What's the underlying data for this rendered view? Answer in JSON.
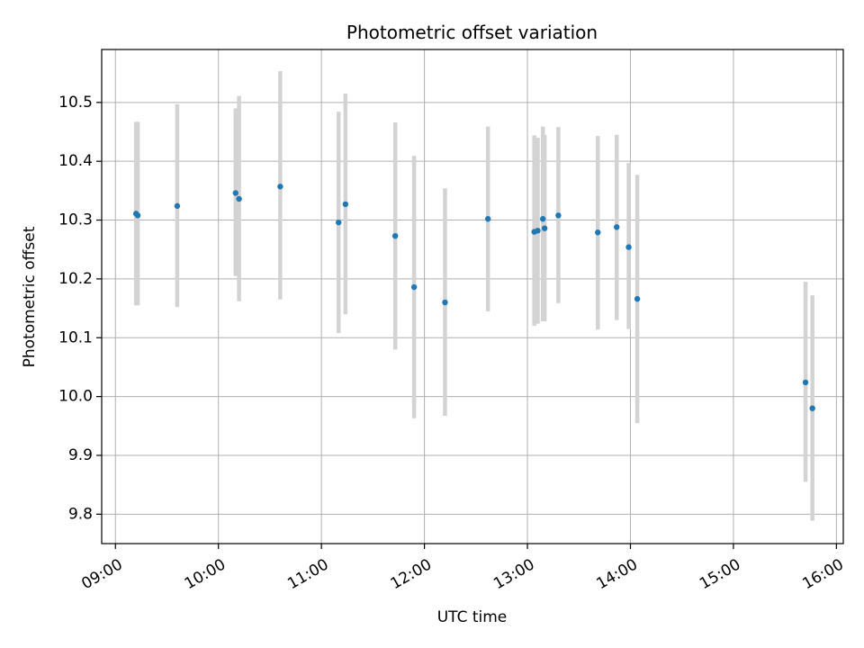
{
  "chart_data": {
    "type": "scatter",
    "title": "Photometric offset variation",
    "xlabel": "UTC time",
    "ylabel": "Photometric offset",
    "x_axis_type": "time",
    "xlim": [
      "08:52",
      "16:04"
    ],
    "ylim": [
      9.75,
      10.59
    ],
    "x_ticks": [
      "09:00",
      "10:00",
      "11:00",
      "12:00",
      "13:00",
      "14:00",
      "15:00",
      "16:00"
    ],
    "y_ticks": [
      9.8,
      9.9,
      10.0,
      10.1,
      10.2,
      10.3,
      10.4,
      10.5
    ],
    "grid": true,
    "marker_color": "#1f77b4",
    "errorbar_color": "#d3d3d3",
    "points": [
      {
        "time": "09:12",
        "y": 10.311,
        "err_low": 10.155,
        "err_high": 10.467
      },
      {
        "time": "09:13",
        "y": 10.308,
        "err_low": 10.155,
        "err_high": 10.467
      },
      {
        "time": "09:36",
        "y": 10.324,
        "err_low": 10.152,
        "err_high": 10.497
      },
      {
        "time": "10:10",
        "y": 10.346,
        "err_low": 10.205,
        "err_high": 10.49
      },
      {
        "time": "10:12",
        "y": 10.336,
        "err_low": 10.162,
        "err_high": 10.511
      },
      {
        "time": "10:36",
        "y": 10.357,
        "err_low": 10.165,
        "err_high": 10.553
      },
      {
        "time": "11:10",
        "y": 10.296,
        "err_low": 10.108,
        "err_high": 10.484
      },
      {
        "time": "11:14",
        "y": 10.327,
        "err_low": 10.14,
        "err_high": 10.515
      },
      {
        "time": "11:43",
        "y": 10.273,
        "err_low": 10.08,
        "err_high": 10.466
      },
      {
        "time": "11:54",
        "y": 10.186,
        "err_low": 9.963,
        "err_high": 10.409
      },
      {
        "time": "12:12",
        "y": 10.16,
        "err_low": 9.967,
        "err_high": 10.354
      },
      {
        "time": "12:37",
        "y": 10.302,
        "err_low": 10.145,
        "err_high": 10.459
      },
      {
        "time": "13:04",
        "y": 10.28,
        "err_low": 10.12,
        "err_high": 10.444
      },
      {
        "time": "13:06",
        "y": 10.282,
        "err_low": 10.124,
        "err_high": 10.44
      },
      {
        "time": "13:09",
        "y": 10.302,
        "err_low": 10.128,
        "err_high": 10.459
      },
      {
        "time": "13:10",
        "y": 10.286,
        "err_low": 10.128,
        "err_high": 10.445
      },
      {
        "time": "13:18",
        "y": 10.308,
        "err_low": 10.159,
        "err_high": 10.458
      },
      {
        "time": "13:41",
        "y": 10.279,
        "err_low": 10.114,
        "err_high": 10.443
      },
      {
        "time": "13:52",
        "y": 10.288,
        "err_low": 10.13,
        "err_high": 10.445
      },
      {
        "time": "13:59",
        "y": 10.254,
        "err_low": 10.115,
        "err_high": 10.397
      },
      {
        "time": "14:04",
        "y": 10.166,
        "err_low": 9.955,
        "err_high": 10.377
      },
      {
        "time": "15:42",
        "y": 10.024,
        "err_low": 9.855,
        "err_high": 10.195
      },
      {
        "time": "15:46",
        "y": 9.98,
        "err_low": 9.789,
        "err_high": 10.172
      }
    ]
  }
}
